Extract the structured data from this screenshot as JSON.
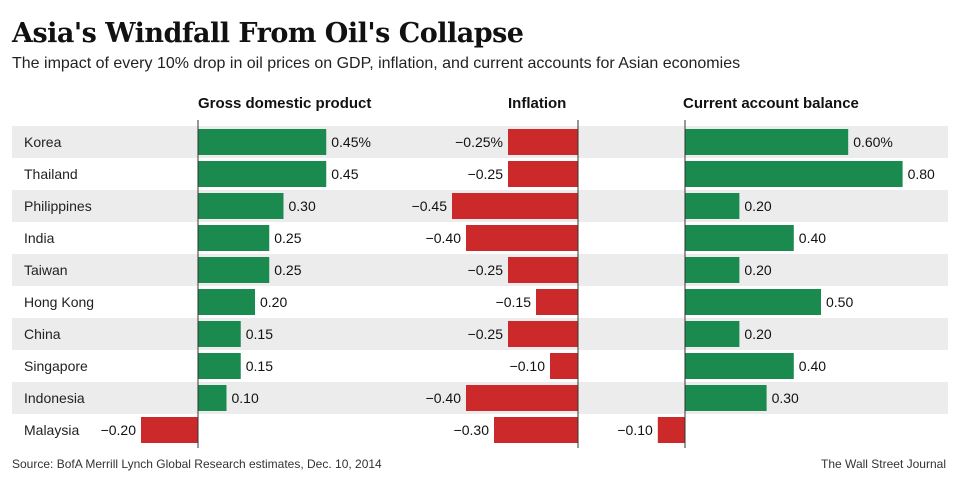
{
  "title": "Asia's Windfall From Oil's Collapse",
  "subtitle": "The impact of every 10% drop in oil prices on GDP, inflation, and current accounts for Asian economies",
  "source": "Source: BofA Merrill Lynch Global Research estimates, Dec. 10, 2014",
  "credit": "The Wall Street Journal",
  "colors": {
    "positive": "#1a8a4f",
    "negative": "#cc2a2a",
    "row_shade": "#ececec",
    "axis": "#333333"
  },
  "chart_data": [
    {
      "type": "bar",
      "orientation": "horizontal",
      "title": "Gross domestic product",
      "categories": [
        "Korea",
        "Thailand",
        "Philippines",
        "India",
        "Taiwan",
        "Hong Kong",
        "China",
        "Singapore",
        "Indonesia",
        "Malaysia"
      ],
      "values": [
        0.45,
        0.45,
        0.3,
        0.25,
        0.25,
        0.2,
        0.15,
        0.15,
        0.1,
        -0.2
      ],
      "labels": [
        "0.45%",
        "0.45",
        "0.30",
        "0.25",
        "0.25",
        "0.20",
        "0.15",
        "0.15",
        "0.10",
        "−0.20"
      ]
    },
    {
      "type": "bar",
      "orientation": "horizontal",
      "title": "Inflation",
      "categories": [
        "Korea",
        "Thailand",
        "Philippines",
        "India",
        "Taiwan",
        "Hong Kong",
        "China",
        "Singapore",
        "Indonesia",
        "Malaysia"
      ],
      "values": [
        -0.25,
        -0.25,
        -0.45,
        -0.4,
        -0.25,
        -0.15,
        -0.25,
        -0.1,
        -0.4,
        -0.3
      ],
      "labels": [
        "−0.25%",
        "−0.25",
        "−0.45",
        "−0.40",
        "−0.25",
        "−0.15",
        "−0.25",
        "−0.10",
        "−0.40",
        "−0.30"
      ]
    },
    {
      "type": "bar",
      "orientation": "horizontal",
      "title": "Current account balance",
      "categories": [
        "Korea",
        "Thailand",
        "Philippines",
        "India",
        "Taiwan",
        "Hong Kong",
        "China",
        "Singapore",
        "Indonesia",
        "Malaysia"
      ],
      "values": [
        0.6,
        0.8,
        0.2,
        0.4,
        0.2,
        0.5,
        0.2,
        0.4,
        0.3,
        -0.1
      ],
      "labels": [
        "0.60%",
        "0.80",
        "0.20",
        "0.40",
        "0.20",
        "0.50",
        "0.20",
        "0.40",
        "0.30",
        "−0.10"
      ]
    }
  ]
}
